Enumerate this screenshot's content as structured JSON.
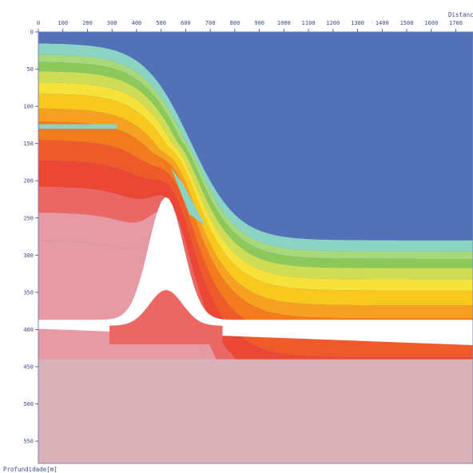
{
  "chart_data": {
    "type": "area",
    "title": "",
    "xlabel": "Distancia[m]",
    "ylabel": "Profundidade[m]",
    "xlim": [
      0,
      1770
    ],
    "ylim": [
      0,
      580
    ],
    "y_inverted": true,
    "x_ticks": [
      0,
      100,
      200,
      300,
      400,
      500,
      600,
      700,
      800,
      900,
      1000,
      1100,
      1200,
      1300,
      1400,
      1500,
      1600,
      1700
    ],
    "y_ticks": [
      0,
      50,
      100,
      150,
      200,
      250,
      300,
      350,
      400,
      450,
      500,
      550
    ],
    "grid": false,
    "legend": "none",
    "colors": {
      "water": "#5271b7",
      "teal": "#8bd3c2",
      "light_green": "#a7d87c",
      "green": "#8cc85a",
      "yellow_green": "#cfdc55",
      "yellow": "#f6e23a",
      "gold": "#f9c81e",
      "orange": "#f6a121",
      "dark_orange": "#f47a1e",
      "red_orange": "#ef5a2a",
      "red": "#ec4634",
      "salmon": "#ea6763",
      "pink": "#e69aa3",
      "light_pink": "#d9b1b8",
      "salt": "#ffffff"
    },
    "shelf": {
      "x_start": 0,
      "x_end": 1770,
      "depth_left": 15,
      "depth_right": 280,
      "slope_center_x": 620
    },
    "layers": [
      {
        "color": "teal",
        "thickness": 12
      },
      {
        "color": "light_green",
        "thickness": 8
      },
      {
        "color": "green",
        "thickness": 10
      },
      {
        "color": "yellow_green",
        "thickness": 12
      },
      {
        "color": "yellow",
        "thickness": 12
      },
      {
        "color": "gold",
        "thickness": 16
      },
      {
        "color": "orange",
        "thickness": 14
      },
      {
        "color": "dark_orange",
        "thickness": 20
      },
      {
        "color": "red_orange",
        "thickness": 22
      },
      {
        "color": "red",
        "thickness": 28
      },
      {
        "color": "salmon",
        "thickness": 28
      },
      {
        "color": "pink",
        "thickness": 30
      }
    ],
    "salt_dome": {
      "center_x": 520,
      "crest_depth": 222,
      "base_depth": 395,
      "width": 420
    },
    "basement_top_depth": 440
  }
}
